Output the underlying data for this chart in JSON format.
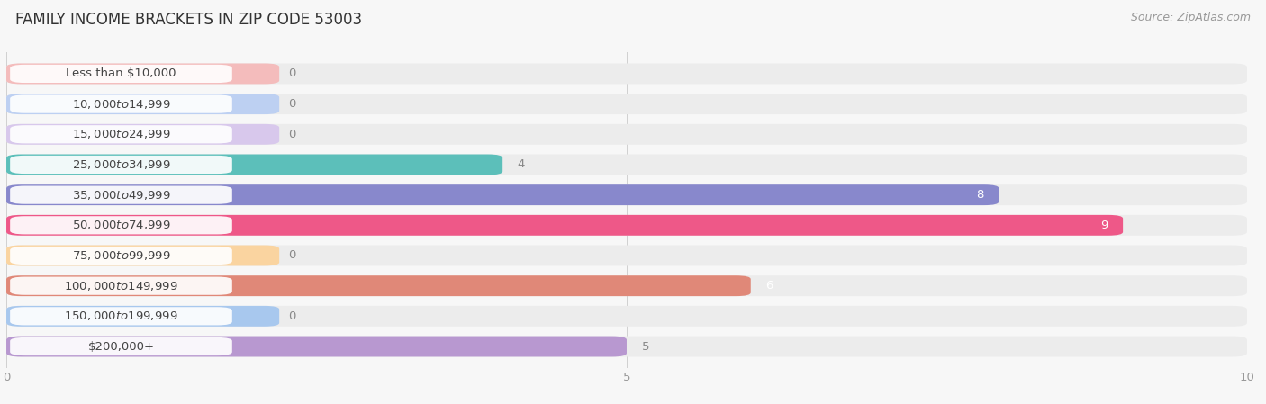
{
  "title": "FAMILY INCOME BRACKETS IN ZIP CODE 53003",
  "source": "Source: ZipAtlas.com",
  "categories": [
    "Less than $10,000",
    "$10,000 to $14,999",
    "$15,000 to $24,999",
    "$25,000 to $34,999",
    "$35,000 to $49,999",
    "$50,000 to $74,999",
    "$75,000 to $99,999",
    "$100,000 to $149,999",
    "$150,000 to $199,999",
    "$200,000+"
  ],
  "values": [
    0,
    0,
    0,
    4,
    8,
    9,
    0,
    6,
    0,
    5
  ],
  "bar_colors": [
    "#F09898",
    "#A0B8E8",
    "#BCA8DC",
    "#5CBFBA",
    "#8888CC",
    "#EE5888",
    "#F8C080",
    "#E08878",
    "#88AAE0",
    "#B898D0"
  ],
  "label_bg_colors": [
    "#FAD0D0",
    "#C8D8F5",
    "#DDD0EE",
    "#A8E0DC",
    "#C0C0E8",
    "#FAB0CC",
    "#FDE0B8",
    "#F2C0B0",
    "#C0D5F5",
    "#DDD0F0"
  ],
  "zero_stub_colors": [
    "#F4BCBC",
    "#BDD0F2",
    "#D8C8EC",
    "#88D8D4",
    "#ACACD8",
    "#F484AA",
    "#FAD4A0",
    "#ECA898",
    "#A8C8EE",
    "#CCAEE0"
  ],
  "xlim": [
    0,
    10
  ],
  "xticks": [
    0,
    5,
    10
  ],
  "background_color": "#f7f7f7",
  "row_bg_color": "#ececec",
  "title_fontsize": 12,
  "source_fontsize": 9,
  "label_fontsize": 9.5,
  "value_fontsize": 9.5
}
